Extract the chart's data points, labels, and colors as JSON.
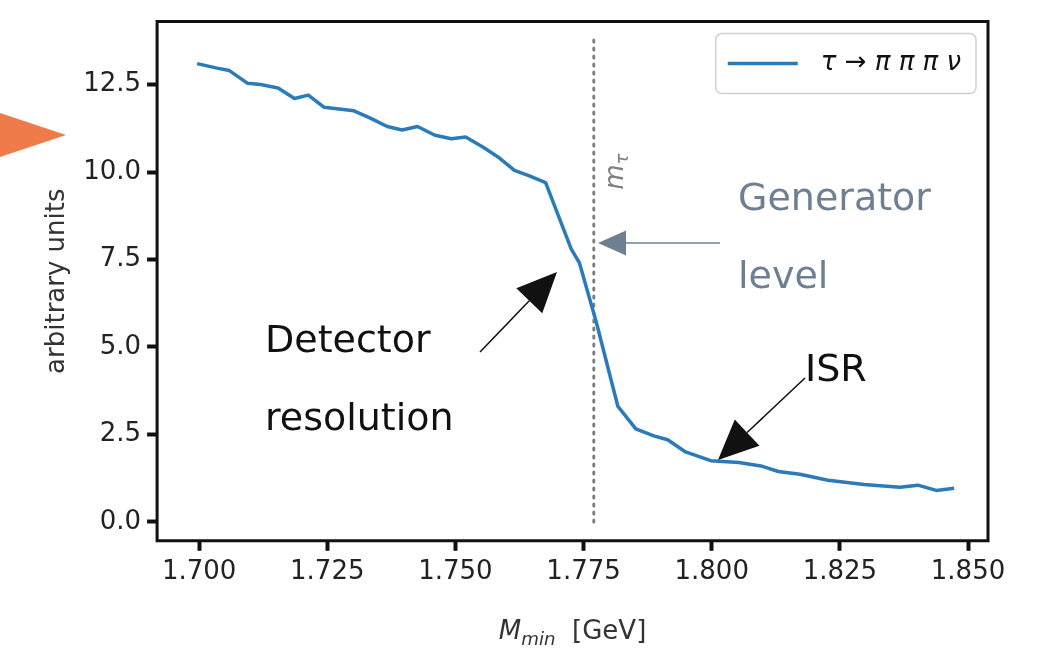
{
  "chart_data": {
    "type": "line",
    "xlabel": "M$_{min}$  [GeV]",
    "ylabel": "arbitrary units",
    "xlim": [
      1.6918,
      1.8539
    ],
    "ylim": [
      -0.54,
      14.3
    ],
    "xticks": [
      {
        "value": 1.7,
        "label": "1.700"
      },
      1.725,
      {
        "value": 1.75,
        "label": "1.750"
      },
      1.775,
      {
        "value": 1.8,
        "label": "1.800"
      },
      1.825,
      {
        "value": 1.85,
        "label": "1.850"
      }
    ],
    "yticks": [
      {
        "value": 0,
        "label": "0.0"
      },
      2.5,
      {
        "value": 5,
        "label": "5.0"
      },
      7.5,
      {
        "value": 10,
        "label": "10.0"
      },
      12.5
    ],
    "grid": false,
    "legend": "top right",
    "marker": "none",
    "line_style": "solid",
    "series": [
      {
        "name": "τ → π π π ν",
        "color": "#2b7bba",
        "x": [
          1.6996,
          1.7035,
          1.7059,
          1.7094,
          1.712,
          1.7154,
          1.7186,
          1.7213,
          1.7244,
          1.7302,
          1.7333,
          1.7367,
          1.7396,
          1.7426,
          1.746,
          1.7492,
          1.752,
          1.7555,
          1.7586,
          1.7615,
          1.7643,
          1.7676,
          1.7726,
          1.7742,
          1.7775,
          1.7817,
          1.7852,
          1.7887,
          1.7914,
          1.7949,
          1.7998,
          1.8053,
          1.8096,
          1.813,
          1.8172,
          1.8227,
          1.8297,
          1.8367,
          1.8402,
          1.8438,
          1.8473
        ],
        "values": [
          13.1,
          12.97,
          12.9,
          12.54,
          12.5,
          12.4,
          12.1,
          12.2,
          11.85,
          11.75,
          11.55,
          11.3,
          11.2,
          11.3,
          11.05,
          10.95,
          11.0,
          10.7,
          10.4,
          10.05,
          9.9,
          9.7,
          7.8,
          7.4,
          5.7,
          3.3,
          2.66,
          2.46,
          2.35,
          2.0,
          1.75,
          1.7,
          1.6,
          1.44,
          1.36,
          1.19,
          1.07,
          0.99,
          1.05,
          0.9,
          0.96
        ]
      }
    ],
    "ref_lines": [
      {
        "axis": "x",
        "value": 1.777,
        "label": "m$_{τ}$",
        "color": "#808080",
        "line_style": "dotted"
      }
    ],
    "annotations": [
      "Detector\nresolution",
      "Generator\nlevel",
      "ISR"
    ]
  }
}
